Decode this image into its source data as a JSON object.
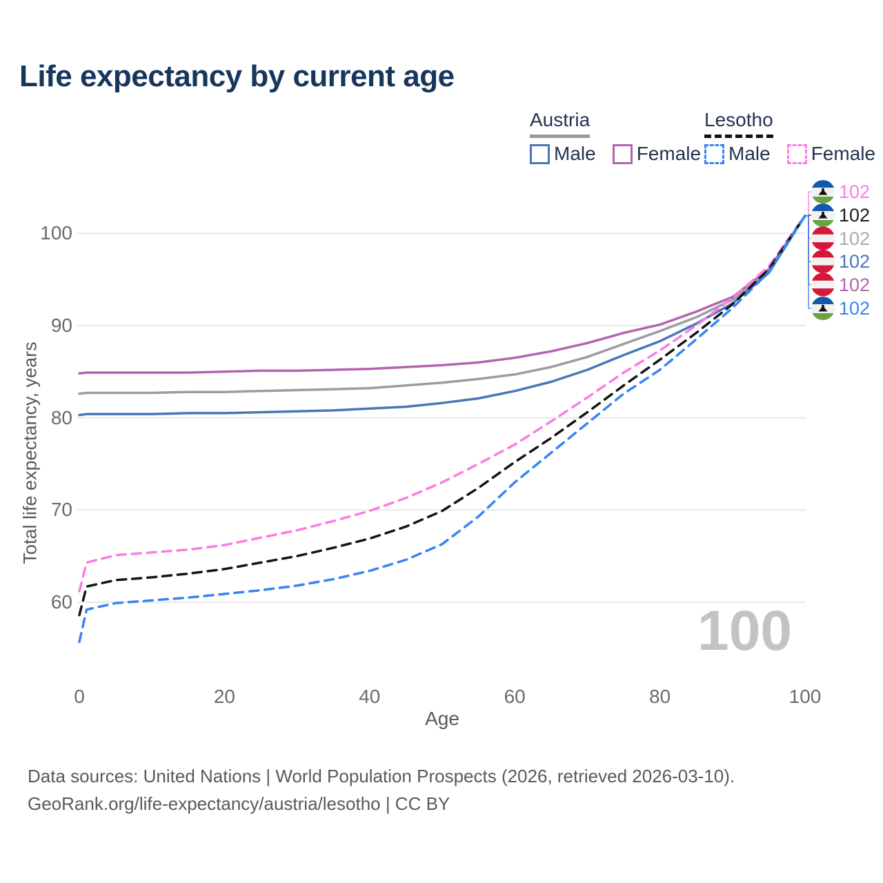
{
  "title": "Life expectancy by current age",
  "legend": {
    "groups": [
      {
        "name": "Austria",
        "underline_style": "solid",
        "underline_color": "#999999",
        "items": [
          {
            "label": "Male",
            "color": "#4a76b8",
            "style": "solid"
          },
          {
            "label": "Female",
            "color": "#b164af",
            "style": "solid"
          }
        ]
      },
      {
        "name": "Lesotho",
        "underline_style": "dashed",
        "underline_color": "#111111",
        "items": [
          {
            "label": "Male",
            "color": "#3584f4",
            "style": "dashed"
          },
          {
            "label": "Female",
            "color": "#fb7ce4",
            "style": "dashed"
          }
        ]
      }
    ]
  },
  "watermark": "100",
  "footer": {
    "line1": "Data sources: United Nations | World Population Prospects (2026, retrieved 2026-03-10).",
    "line2": "GeoRank.org/life-expectancy/austria/lesotho | CC BY"
  },
  "right_labels": [
    {
      "value": "102",
      "country": "Lesotho",
      "series": "Lesotho Female",
      "color": "#fb7ce4"
    },
    {
      "value": "102",
      "country": "Lesotho",
      "series": "Lesotho Both sexes",
      "color": "#1a1a1a"
    },
    {
      "value": "102",
      "country": "Austria",
      "series": "Austria Both sexes",
      "color": "#ababab"
    },
    {
      "value": "102",
      "country": "Austria",
      "series": "Austria Male",
      "color": "#4a76b8"
    },
    {
      "value": "102",
      "country": "Austria",
      "series": "Austria Female",
      "color": "#b164af"
    },
    {
      "value": "102",
      "country": "Lesotho",
      "series": "Lesotho Male",
      "color": "#3584f4"
    }
  ],
  "chart_data": {
    "type": "line",
    "title": "Life expectancy by current age",
    "xlabel": "Age",
    "ylabel": "Total life expectancy, years",
    "xlim": [
      0,
      100
    ],
    "ylim_display": [
      55,
      104
    ],
    "xticks": [
      0,
      20,
      40,
      60,
      80,
      100
    ],
    "yticks": [
      60,
      70,
      80,
      90,
      100
    ],
    "grid": "horizontal-only",
    "legend_position": "top-right",
    "ages": [
      0,
      1,
      5,
      10,
      15,
      20,
      25,
      30,
      35,
      40,
      45,
      50,
      55,
      60,
      65,
      70,
      75,
      80,
      85,
      90,
      95,
      100
    ],
    "series": [
      {
        "name": "Austria Female",
        "country": "Austria",
        "sex": "Female",
        "style": "solid",
        "color": "#b164af",
        "values": [
          84.8,
          84.9,
          84.9,
          84.9,
          84.9,
          85.0,
          85.1,
          85.1,
          85.2,
          85.3,
          85.5,
          85.7,
          86.0,
          86.5,
          87.2,
          88.1,
          89.2,
          90.1,
          91.5,
          93.1,
          96.1,
          101.9
        ]
      },
      {
        "name": "Austria Both sexes",
        "country": "Austria",
        "sex": "Both",
        "style": "solid",
        "color": "#9c9c9c",
        "values": [
          82.6,
          82.7,
          82.7,
          82.7,
          82.8,
          82.8,
          82.9,
          83.0,
          83.1,
          83.2,
          83.5,
          83.8,
          84.2,
          84.7,
          85.5,
          86.6,
          88.0,
          89.4,
          90.9,
          92.8,
          95.9,
          101.9
        ]
      },
      {
        "name": "Austria Male",
        "country": "Austria",
        "sex": "Male",
        "style": "solid",
        "color": "#4a76b8",
        "values": [
          80.3,
          80.4,
          80.4,
          80.4,
          80.5,
          80.5,
          80.6,
          80.7,
          80.8,
          81.0,
          81.2,
          81.6,
          82.1,
          82.9,
          83.9,
          85.2,
          86.8,
          88.3,
          90.2,
          92.4,
          95.7,
          101.9
        ]
      },
      {
        "name": "Lesotho Female",
        "country": "Lesotho",
        "sex": "Female",
        "style": "dashed",
        "color": "#fb7ce4",
        "values": [
          61.2,
          64.3,
          65.1,
          65.4,
          65.7,
          66.2,
          67.0,
          67.8,
          68.8,
          69.9,
          71.3,
          73.0,
          75.0,
          77.1,
          79.6,
          82.2,
          84.9,
          87.3,
          90.0,
          93.0,
          96.4,
          101.9
        ]
      },
      {
        "name": "Lesotho Both sexes",
        "country": "Lesotho",
        "sex": "Both",
        "style": "dashed",
        "color": "#141414",
        "values": [
          58.6,
          61.7,
          62.4,
          62.7,
          63.1,
          63.6,
          64.3,
          65.0,
          65.9,
          66.9,
          68.2,
          69.9,
          72.4,
          75.2,
          77.8,
          80.6,
          83.5,
          86.3,
          89.2,
          92.3,
          96.1,
          101.9
        ]
      },
      {
        "name": "Lesotho Male",
        "country": "Lesotho",
        "sex": "Male",
        "style": "dashed",
        "color": "#3584f4",
        "values": [
          55.7,
          59.2,
          59.9,
          60.2,
          60.5,
          60.9,
          61.3,
          61.8,
          62.5,
          63.4,
          64.6,
          66.3,
          69.3,
          73.0,
          76.2,
          79.4,
          82.6,
          85.2,
          88.5,
          91.9,
          95.8,
          101.9
        ]
      }
    ],
    "end_value_labels": {
      "age": 100,
      "label": "102",
      "order_top_to_bottom": [
        "Lesotho Female",
        "Lesotho Both sexes",
        "Austria Both sexes",
        "Austria Male",
        "Austria Female",
        "Lesotho Male"
      ]
    }
  }
}
